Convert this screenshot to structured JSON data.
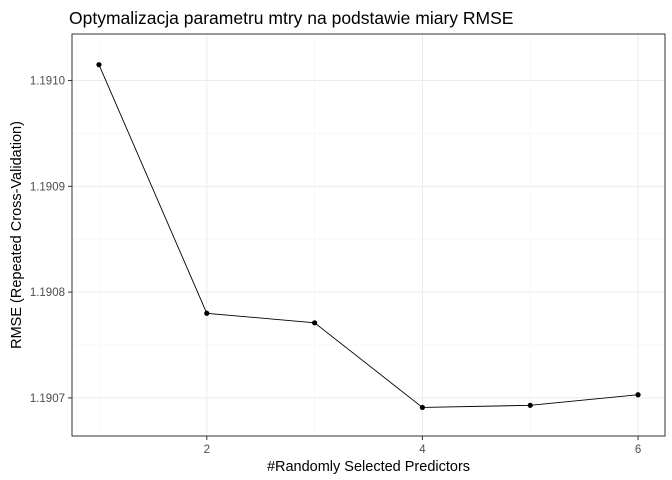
{
  "chart_data": {
    "type": "line",
    "title": "Optymalizacja parametru mtry na podstawie miary RMSE",
    "xlabel": "#Randomly Selected Predictors",
    "ylabel": "RMSE (Repeated Cross-Validation)",
    "x": [
      1,
      2,
      3,
      4,
      5,
      6
    ],
    "y": [
      1.191015,
      1.19078,
      1.190771,
      1.190691,
      1.190693,
      1.190703
    ],
    "xlim": [
      0.75,
      6.25
    ],
    "ylim": [
      1.190664,
      1.191044
    ],
    "x_ticks": [
      2,
      4,
      6
    ],
    "x_tick_labels": [
      "2",
      "4",
      "6"
    ],
    "y_ticks": [
      1.1907,
      1.1908,
      1.1909,
      1.191
    ],
    "y_tick_labels": [
      "1.1907",
      "1.1908",
      "1.1909",
      "1.1910"
    ],
    "grid": true,
    "colors": {
      "line": "#000000",
      "points": "#000000",
      "grid_major": "#ebebeb",
      "grid_minor": "#f5f5f5",
      "panel_border": "#333333"
    }
  }
}
